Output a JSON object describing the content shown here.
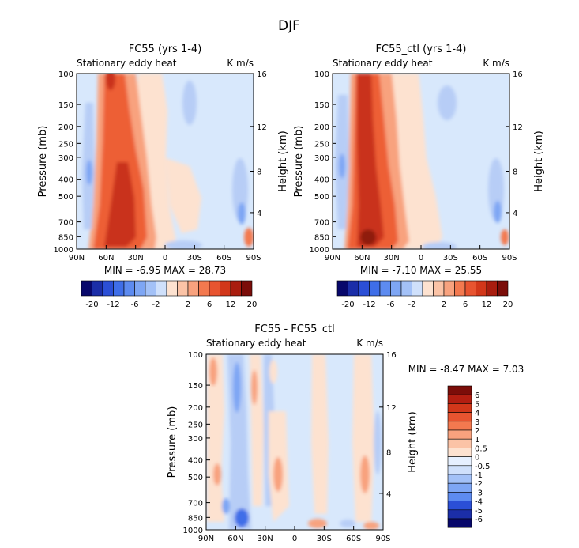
{
  "figure_title": "DJF",
  "chart_data": [
    {
      "type": "heatmap",
      "title": "FC55 (yrs 1-4)",
      "left_label": "Stationary eddy heat",
      "right_label": "K m/s",
      "ylabel": "Pressure (mb)",
      "y2label": "Height (km)",
      "x_ticks": [
        "90N",
        "60N",
        "30N",
        "0",
        "30S",
        "60S",
        "90S"
      ],
      "y_ticks": [
        "100",
        "150",
        "200",
        "250",
        "300",
        "400",
        "500",
        "700",
        "850",
        "1000"
      ],
      "y2_ticks": [
        "16",
        "12",
        "8",
        "4"
      ],
      "stats": "MIN =  -6.95   MAX =  28.73",
      "colorbar_labels": [
        "-20",
        "-12",
        "-6",
        "-2",
        "2",
        "6",
        "12",
        "20"
      ]
    },
    {
      "type": "heatmap",
      "title": "FC55_ctl (yrs 1-4)",
      "left_label": "Stationary eddy heat",
      "right_label": "K m/s",
      "ylabel": "Pressure (mb)",
      "y2label": "Height (km)",
      "x_ticks": [
        "90N",
        "60N",
        "30N",
        "0",
        "30S",
        "60S",
        "90S"
      ],
      "y_ticks": [
        "100",
        "150",
        "200",
        "250",
        "300",
        "400",
        "500",
        "700",
        "850",
        "1000"
      ],
      "y2_ticks": [
        "16",
        "12",
        "8",
        "4"
      ],
      "stats": "MIN =  -7.10   MAX =  25.55",
      "colorbar_labels": [
        "-20",
        "-12",
        "-6",
        "-2",
        "2",
        "6",
        "12",
        "20"
      ]
    },
    {
      "type": "heatmap",
      "title": "FC55 - FC55_ctl",
      "left_label": "Stationary eddy heat",
      "right_label": "K m/s",
      "ylabel": "Pressure (mb)",
      "y2label": "Height (km)",
      "x_ticks": [
        "90N",
        "60N",
        "30N",
        "0",
        "30S",
        "60S",
        "90S"
      ],
      "y_ticks": [
        "100",
        "150",
        "200",
        "250",
        "300",
        "400",
        "500",
        "700",
        "850",
        "1000"
      ],
      "y2_ticks": [
        "16",
        "12",
        "8",
        "4"
      ],
      "stats": "MIN =  -8.47   MAX =   7.03",
      "colorbar_labels": [
        "6",
        "5",
        "4",
        "3",
        "2",
        "1",
        "0.5",
        "0",
        "-0.5",
        "-1",
        "-2",
        "-3",
        "-4",
        "-5",
        "-6"
      ]
    }
  ],
  "palettes": {
    "blue_red_16": [
      "#08086b",
      "#1b2ea8",
      "#2b4fd6",
      "#3f6ee8",
      "#5d8bf0",
      "#7ea6f4",
      "#a3c1f7",
      "#cfe0fb",
      "#fde2d0",
      "#fbc3a6",
      "#f8a27e",
      "#f3794f",
      "#e85430",
      "#d2371a",
      "#a91d0f",
      "#7b0d09"
    ],
    "diff_16": [
      "#7b0d09",
      "#b31e11",
      "#d2371a",
      "#e85430",
      "#f3794f",
      "#f8a27e",
      "#fbc3a6",
      "#fde2d0",
      "#e6f0ff",
      "#cfe0fb",
      "#a3c1f7",
      "#7ea6f4",
      "#5d8bf0",
      "#2b4fd6",
      "#1b2ea8",
      "#08086b"
    ],
    "background": "#d8e8fc",
    "warm_light": "#fde2d0",
    "warm_mid": "#f8a27e",
    "warm_strong": "#ed5f36",
    "warm_dark": "#c9331a",
    "cool_light": "#b7cdf6",
    "cool_mid": "#7ea6f4",
    "cool_strong": "#3f6ee8",
    "cool_dark": "#1b2ea8"
  }
}
